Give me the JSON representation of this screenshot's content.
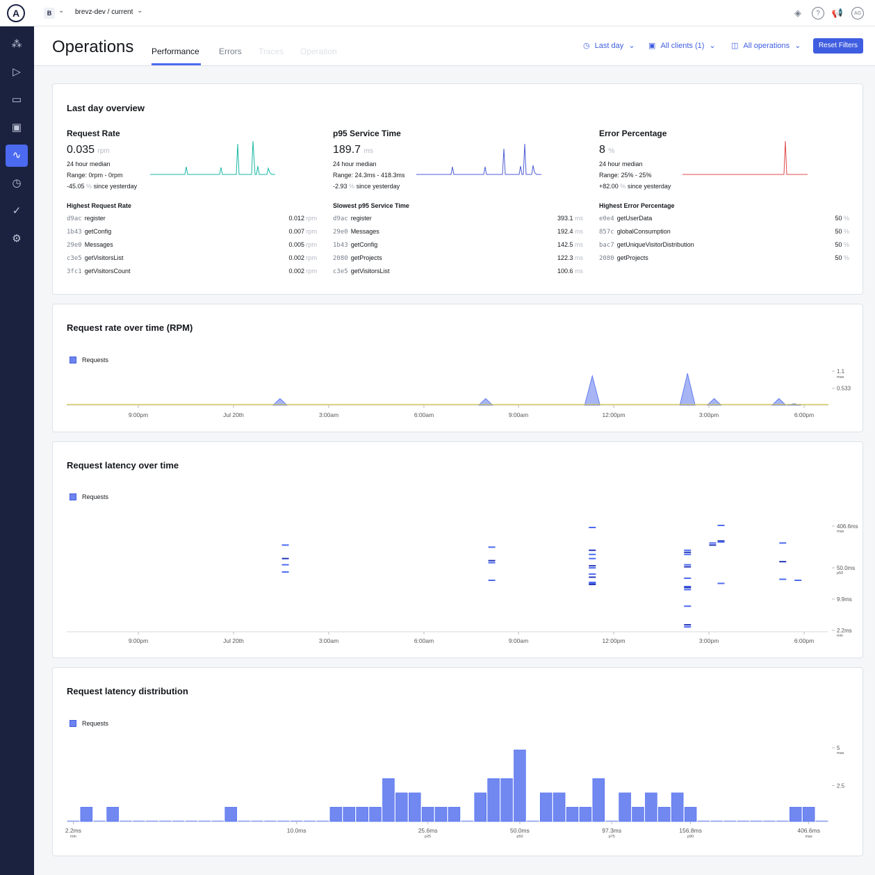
{
  "topbar": {
    "logo": "A",
    "graph_badge": "B",
    "graph_name": "brevz-dev / current",
    "icons": [
      "schema-icon",
      "help-icon",
      "announcement-icon",
      "avatar"
    ],
    "help_glyph": "?",
    "avatar_initials": "AG"
  },
  "sidebar": {
    "items": [
      {
        "icon": "graph-icon",
        "active": false
      },
      {
        "icon": "explorer-icon",
        "active": false
      },
      {
        "icon": "schema-reference-icon",
        "active": false
      },
      {
        "icon": "clients-icon",
        "active": false
      },
      {
        "icon": "operations-icon",
        "active": true
      },
      {
        "icon": "history-icon",
        "active": false
      },
      {
        "icon": "checks-icon",
        "active": false
      },
      {
        "icon": "settings-icon",
        "active": false
      }
    ]
  },
  "header": {
    "title": "Operations",
    "tabs": [
      {
        "label": "Performance",
        "active": true
      },
      {
        "label": "Errors",
        "active": false
      },
      {
        "label": "Traces",
        "active": false
      },
      {
        "label": "Operation",
        "active": false
      }
    ],
    "filters": {
      "time": "Last day",
      "clients": "All clients (1)",
      "operations": "All operations"
    },
    "reset_label": "Reset Filters"
  },
  "overview": {
    "title": "Last day overview",
    "stats": [
      {
        "label": "Request Rate",
        "value": "0.035",
        "unit": "rpm",
        "median_label": "24 hour median",
        "range": "Range: 0rpm - 0rpm",
        "change": "-45.05",
        "change_unit": "%",
        "change_suffix": "since yesterday",
        "color": "#17b8a6",
        "list_title": "Highest Request Rate",
        "rows": [
          {
            "id": "d9ac",
            "name": "register",
            "value": "0.012",
            "unit": "rpm"
          },
          {
            "id": "1b43",
            "name": "getConfig",
            "value": "0.007",
            "unit": "rpm"
          },
          {
            "id": "29e0",
            "name": "Messages",
            "value": "0.005",
            "unit": "rpm"
          },
          {
            "id": "c3e5",
            "name": "getVisitorsList",
            "value": "0.002",
            "unit": "rpm"
          },
          {
            "id": "3fc1",
            "name": "getVisitorsCount",
            "value": "0.002",
            "unit": "rpm"
          }
        ]
      },
      {
        "label": "p95 Service Time",
        "value": "189.7",
        "unit": "ms",
        "median_label": "24 hour median",
        "range": "Range: 24.3ms - 418.3ms",
        "change": "-2.93",
        "change_unit": "%",
        "change_suffix": "since yesterday",
        "color": "#4c5bd4",
        "list_title": "Slowest p95 Service Time",
        "rows": [
          {
            "id": "d9ac",
            "name": "register",
            "value": "393.1",
            "unit": "ms"
          },
          {
            "id": "29e0",
            "name": "Messages",
            "value": "192.4",
            "unit": "ms"
          },
          {
            "id": "1b43",
            "name": "getConfig",
            "value": "142.5",
            "unit": "ms"
          },
          {
            "id": "2080",
            "name": "getProjects",
            "value": "122.3",
            "unit": "ms"
          },
          {
            "id": "c3e5",
            "name": "getVisitorsList",
            "value": "100.6",
            "unit": "ms"
          }
        ]
      },
      {
        "label": "Error Percentage",
        "value": "8",
        "unit": "%",
        "median_label": "24 hour median",
        "range": "Range: 25% - 25%",
        "change": "+82.00",
        "change_unit": "%",
        "change_suffix": "since yesterday",
        "color": "#e04848",
        "list_title": "Highest Error Percentage",
        "rows": [
          {
            "id": "e0e4",
            "name": "getUserData",
            "value": "50",
            "unit": "%"
          },
          {
            "id": "857c",
            "name": "globalConsumption",
            "value": "50",
            "unit": "%"
          },
          {
            "id": "bac7",
            "name": "getUniqueVisitorDistribution",
            "value": "50",
            "unit": "%"
          },
          {
            "id": "2080",
            "name": "getProjects",
            "value": "50",
            "unit": "%"
          }
        ]
      }
    ]
  },
  "chart_data": [
    {
      "type": "area",
      "title": "Request rate over time (RPM)",
      "legend": [
        "Requests"
      ],
      "legend_position": "top-left",
      "x_ticks": [
        "9:00pm",
        "Jul 20th",
        "3:00am",
        "6:00am",
        "9:00am",
        "12:00pm",
        "3:00pm",
        "6:00pm"
      ],
      "y_ticks": [
        {
          "label": "1.1",
          "sub": "max"
        },
        {
          "label": "0.533",
          "sub": ""
        }
      ],
      "ylim": [
        0,
        1.1
      ],
      "peaks": [
        {
          "x": 0.28,
          "y": 0.22
        },
        {
          "x": 0.55,
          "y": 0.22
        },
        {
          "x": 0.69,
          "y": 0.97
        },
        {
          "x": 0.815,
          "y": 1.05
        },
        {
          "x": 0.85,
          "y": 0.22
        },
        {
          "x": 0.935,
          "y": 0.22
        },
        {
          "x": 0.955,
          "y": 0.05
        }
      ]
    },
    {
      "type": "heatmap",
      "title": "Request latency over time",
      "legend": [
        "Requests"
      ],
      "legend_position": "top-left",
      "x_ticks": [
        "9:00pm",
        "Jul 20th",
        "3:00am",
        "6:00am",
        "9:00am",
        "12:00pm",
        "3:00pm",
        "6:00pm"
      ],
      "y_ticks": [
        {
          "label": "406.6ms",
          "sub": "max"
        },
        {
          "label": "50.0ms",
          "sub": "p50"
        },
        {
          "label": "9.9ms",
          "sub": ""
        },
        {
          "label": "2.2ms",
          "sub": "min"
        }
      ],
      "columns": [
        {
          "x": 0.287,
          "ys": [
            0.81,
            0.68,
            0.62,
            0.55
          ]
        },
        {
          "x": 0.558,
          "ys": [
            0.79,
            0.66,
            0.64,
            0.47
          ]
        },
        {
          "x": 0.69,
          "ys": [
            0.98,
            0.76,
            0.72,
            0.68,
            0.61,
            0.59,
            0.53,
            0.5,
            0.45,
            0.44,
            0.43
          ]
        },
        {
          "x": 0.815,
          "ys": [
            0.76,
            0.74,
            0.72,
            0.62,
            0.6,
            0.49,
            0.41,
            0.4,
            0.38,
            0.22,
            0.04,
            0.02
          ]
        },
        {
          "x": 0.848,
          "ys": [
            0.83,
            0.81
          ]
        },
        {
          "x": 0.859,
          "ys": [
            1.0,
            0.85,
            0.84,
            0.44
          ]
        },
        {
          "x": 0.94,
          "ys": [
            0.83,
            0.65,
            0.48
          ]
        },
        {
          "x": 0.96,
          "ys": [
            0.47
          ]
        }
      ]
    },
    {
      "type": "bar",
      "title": "Request latency distribution",
      "legend": [
        "Requests"
      ],
      "legend_position": "top-left",
      "x_ticks": [
        {
          "label": "2.2ms",
          "sub": "min",
          "index": 0
        },
        {
          "label": "10.0ms",
          "sub": "",
          "index": 17
        },
        {
          "label": "25.6ms",
          "sub": "p25",
          "index": 27
        },
        {
          "label": "50.0ms",
          "sub": "p50",
          "index": 34
        },
        {
          "label": "97.3ms",
          "sub": "p75",
          "index": 41
        },
        {
          "label": "156.8ms",
          "sub": "p90",
          "index": 47
        },
        {
          "label": "406.6ms",
          "sub": "max",
          "index": 56
        }
      ],
      "y_ticks": [
        {
          "label": "5",
          "sub": "max"
        },
        {
          "label": "2.5",
          "sub": ""
        }
      ],
      "ylim": [
        0,
        5
      ],
      "values": [
        0,
        1,
        0,
        1,
        0,
        0,
        0,
        0,
        0,
        0,
        0,
        0,
        1,
        0,
        0,
        0,
        0,
        0,
        0,
        0,
        1,
        1,
        1,
        1,
        3,
        2,
        2,
        1,
        1,
        1,
        0,
        2,
        3,
        3,
        5,
        0,
        2,
        2,
        1,
        1,
        3,
        0,
        2,
        1,
        2,
        1,
        2,
        1,
        0,
        0,
        0,
        0,
        0,
        0,
        0,
        1,
        1,
        0
      ]
    }
  ]
}
